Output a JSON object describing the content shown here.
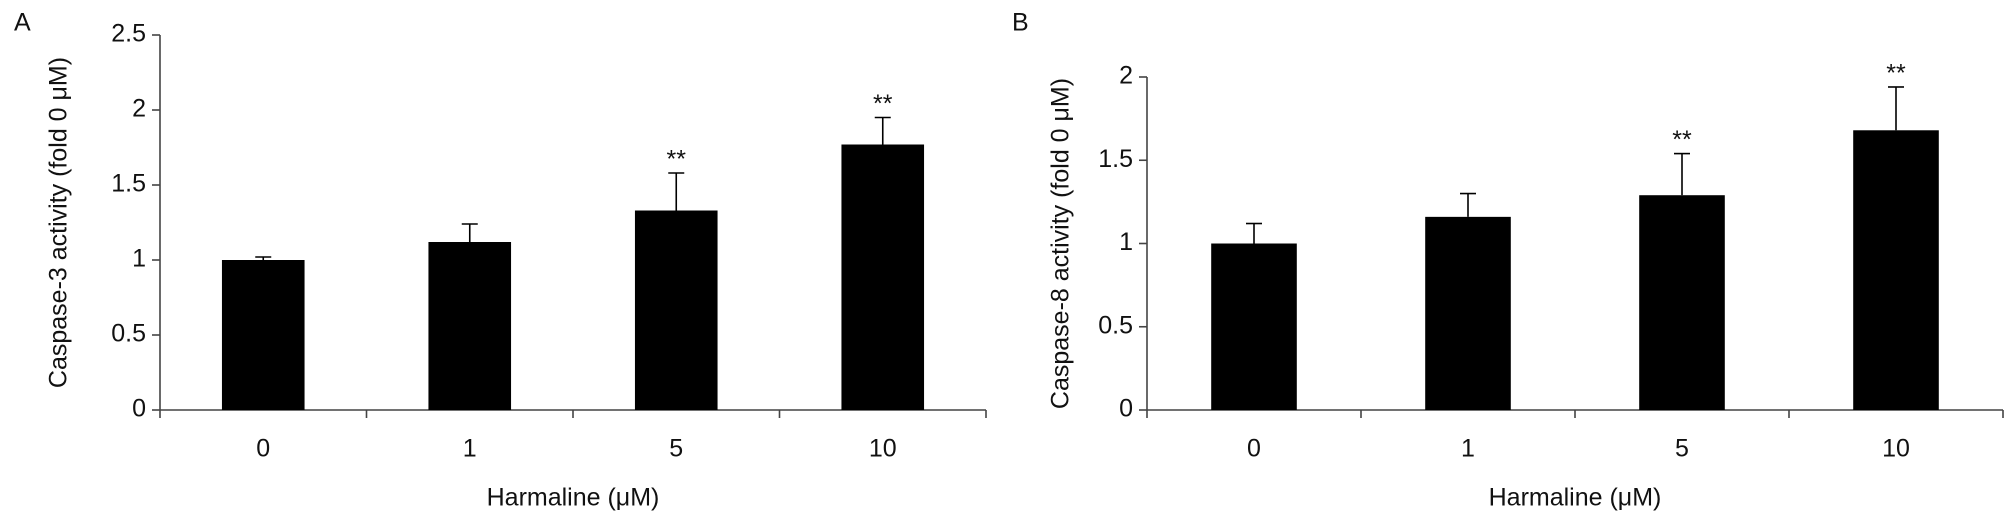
{
  "chart_data": [
    {
      "type": "bar",
      "panel": "A",
      "y_label": "Caspase-3 activity (fold 0 μM)",
      "x_label": "Harmaline (μM)",
      "categories": [
        "0",
        "1",
        "5",
        "10"
      ],
      "values": [
        1.0,
        1.12,
        1.33,
        1.77
      ],
      "errors": [
        0.02,
        0.12,
        0.25,
        0.18
      ],
      "annotations": [
        null,
        null,
        "**",
        "**"
      ],
      "color": "#000000",
      "ylim": [
        0,
        2.5
      ],
      "yticks": [
        0,
        0.5,
        1,
        1.5,
        2,
        2.5
      ]
    },
    {
      "type": "bar",
      "panel": "B",
      "y_label": "Caspase-8 activity (fold 0 μM)",
      "x_label": "Harmaline (μM)",
      "categories": [
        "0",
        "1",
        "5",
        "10"
      ],
      "values": [
        1.0,
        1.16,
        1.29,
        1.68
      ],
      "errors": [
        0.12,
        0.14,
        0.25,
        0.26
      ],
      "annotations": [
        null,
        null,
        "**",
        "**"
      ],
      "color": "#000000",
      "ylim": [
        0,
        2
      ],
      "yticks": [
        0,
        0.5,
        1,
        1.5,
        2
      ]
    }
  ]
}
